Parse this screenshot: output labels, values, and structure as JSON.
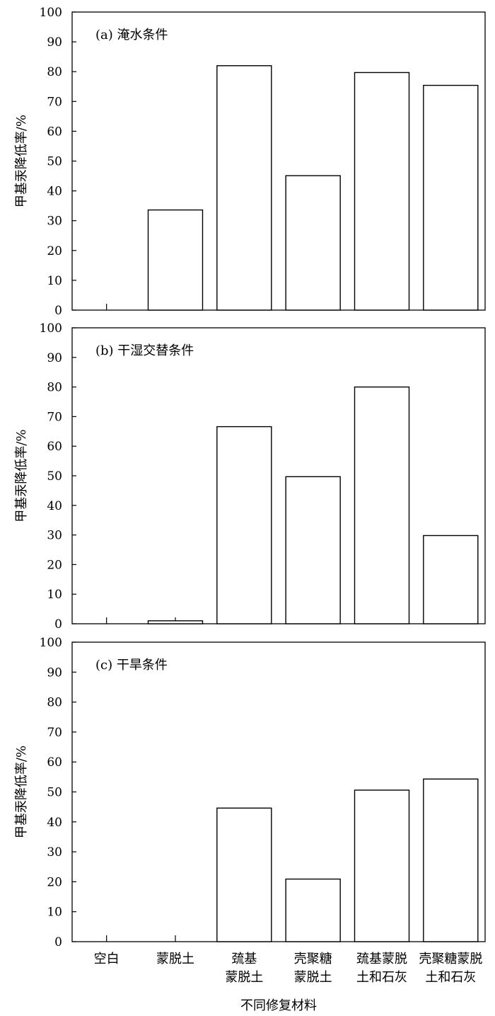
{
  "xlabel": "不同修复材料",
  "categories": [
    [
      "空白"
    ],
    [
      "蒙脱土"
    ],
    [
      "巯基",
      "蒙脱土"
    ],
    [
      "壳聚糖",
      "蒙脱土"
    ],
    [
      "巯基蒙脱",
      "土和石灰"
    ],
    [
      "壳聚糖蒙脱",
      "土和石灰"
    ]
  ],
  "chart_data": [
    {
      "type": "bar",
      "title": "(a) 淹水条件",
      "ylabel": "甲基汞降低率/%",
      "ylim": [
        0,
        100
      ],
      "yticks": [
        0,
        10,
        20,
        30,
        40,
        50,
        60,
        70,
        80,
        90,
        100
      ],
      "categories": [
        "空白",
        "蒙脱土",
        "巯基蒙脱土",
        "壳聚糖蒙脱土",
        "巯基蒙脱土和石灰",
        "壳聚糖蒙脱土和石灰"
      ],
      "values": [
        0,
        33.6,
        82.0,
        45.1,
        79.7,
        75.4
      ],
      "bar_fill": "#ffffff",
      "bar_stroke": "#000000"
    },
    {
      "type": "bar",
      "title": "(b) 干湿交替条件",
      "ylabel": "甲基汞降低率/%",
      "ylim": [
        0,
        100
      ],
      "yticks": [
        0,
        10,
        20,
        30,
        40,
        50,
        60,
        70,
        80,
        90,
        100
      ],
      "categories": [
        "空白",
        "蒙脱土",
        "巯基蒙脱土",
        "壳聚糖蒙脱土",
        "巯基蒙脱土和石灰",
        "壳聚糖蒙脱土和石灰"
      ],
      "values": [
        0,
        1.0,
        66.6,
        49.7,
        80.0,
        29.8
      ],
      "bar_fill": "#ffffff",
      "bar_stroke": "#000000"
    },
    {
      "type": "bar",
      "title": "(c) 干旱条件",
      "ylabel": "甲基汞降低率/%",
      "ylim": [
        0,
        100
      ],
      "yticks": [
        0,
        10,
        20,
        30,
        40,
        50,
        60,
        70,
        80,
        90,
        100
      ],
      "categories": [
        "空白",
        "蒙脱土",
        "巯基蒙脱土",
        "壳聚糖蒙脱土",
        "巯基蒙脱土和石灰",
        "壳聚糖蒙脱土和石灰"
      ],
      "values": [
        0,
        0,
        44.6,
        20.9,
        50.6,
        54.3
      ],
      "bar_fill": "#ffffff",
      "bar_stroke": "#000000"
    }
  ]
}
